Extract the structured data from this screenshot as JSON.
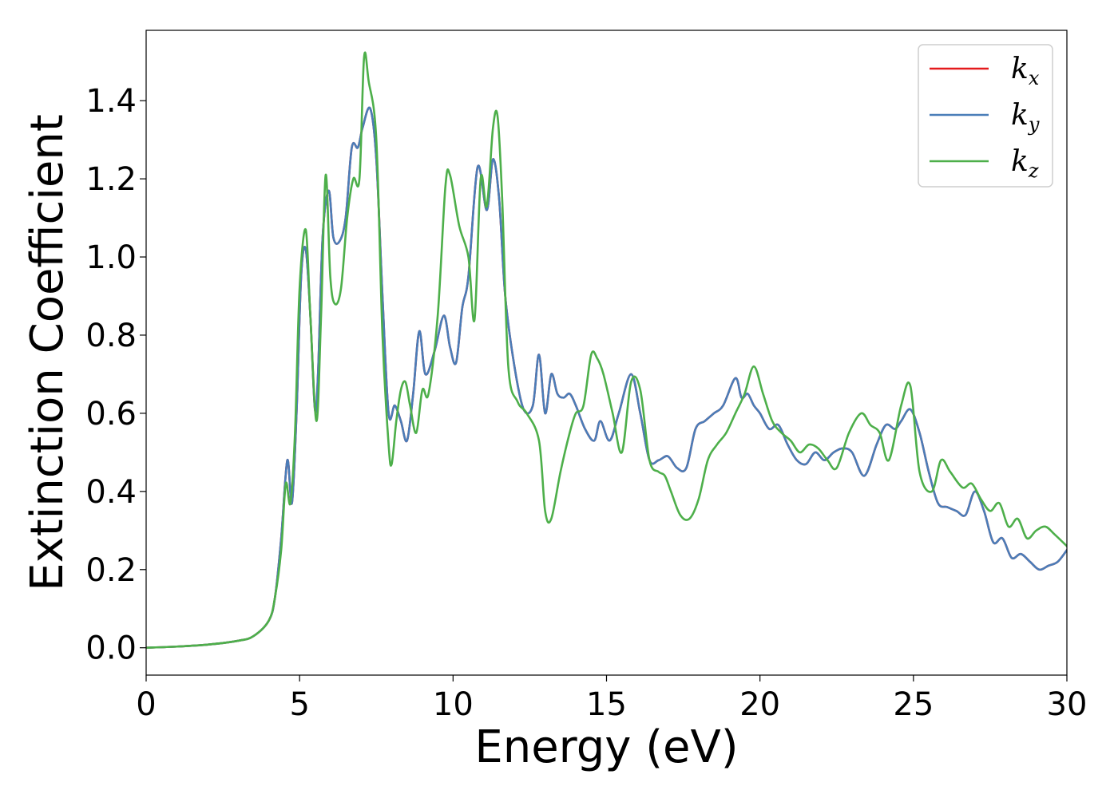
{
  "chart_data": {
    "type": "line",
    "xlabel": "Energy (eV)",
    "ylabel": "Extinction Coefficient",
    "xlim": [
      0,
      30
    ],
    "ylim": [
      -0.07,
      1.58
    ],
    "xticks": [
      0,
      5,
      10,
      15,
      20,
      25,
      30
    ],
    "yticks": [
      0.0,
      0.2,
      0.4,
      0.6,
      0.8,
      1.0,
      1.2,
      1.4
    ],
    "xtick_labels": [
      "0",
      "5",
      "10",
      "15",
      "20",
      "25",
      "30"
    ],
    "ytick_labels": [
      "0.0",
      "0.2",
      "0.4",
      "0.6",
      "0.8",
      "1.0",
      "1.2",
      "1.4"
    ],
    "grid": false,
    "legend_position": "top-right",
    "series": [
      {
        "name": "k_x",
        "label_base": "k",
        "label_sub": "x",
        "color": "#e41a1c",
        "x": [
          0,
          1,
          2,
          3,
          3.5,
          4.0,
          4.2,
          4.4,
          4.6,
          4.75,
          4.9,
          5.05,
          5.2,
          5.35,
          5.5,
          5.6,
          5.75,
          5.95,
          6.1,
          6.3,
          6.5,
          6.7,
          6.9,
          7.05,
          7.3,
          7.5,
          7.7,
          7.9,
          8.1,
          8.3,
          8.5,
          8.7,
          8.9,
          9.1,
          9.4,
          9.7,
          9.9,
          10.1,
          10.3,
          10.5,
          10.8,
          11.1,
          11.3,
          11.5,
          11.7,
          12.0,
          12.3,
          12.6,
          12.8,
          13.0,
          13.2,
          13.4,
          13.6,
          13.8,
          14.0,
          14.3,
          14.6,
          14.8,
          15.1,
          15.4,
          15.8,
          16.1,
          16.4,
          16.7,
          17.0,
          17.3,
          17.6,
          17.9,
          18.2,
          18.5,
          18.8,
          19.2,
          19.4,
          19.6,
          19.8,
          20.0,
          20.3,
          20.6,
          20.9,
          21.2,
          21.5,
          21.8,
          22.1,
          22.4,
          22.7,
          23.0,
          23.4,
          23.8,
          24.1,
          24.4,
          24.6,
          24.9,
          25.2,
          25.5,
          25.8,
          26.1,
          26.4,
          26.7,
          27.0,
          27.3,
          27.6,
          27.9,
          28.2,
          28.5,
          28.8,
          29.1,
          29.4,
          29.7,
          30.0
        ],
        "y": [
          0.0,
          0.003,
          0.008,
          0.018,
          0.03,
          0.07,
          0.13,
          0.28,
          0.48,
          0.37,
          0.6,
          0.95,
          1.02,
          0.85,
          0.61,
          0.7,
          1.05,
          1.17,
          1.05,
          1.04,
          1.1,
          1.28,
          1.28,
          1.33,
          1.38,
          1.25,
          0.9,
          0.6,
          0.62,
          0.58,
          0.53,
          0.65,
          0.81,
          0.7,
          0.76,
          0.85,
          0.77,
          0.73,
          0.87,
          0.95,
          1.23,
          1.12,
          1.25,
          1.15,
          0.9,
          0.72,
          0.61,
          0.62,
          0.75,
          0.6,
          0.7,
          0.65,
          0.64,
          0.65,
          0.62,
          0.56,
          0.53,
          0.58,
          0.53,
          0.6,
          0.7,
          0.6,
          0.48,
          0.48,
          0.49,
          0.46,
          0.46,
          0.56,
          0.58,
          0.6,
          0.62,
          0.69,
          0.64,
          0.65,
          0.62,
          0.6,
          0.56,
          0.57,
          0.52,
          0.48,
          0.47,
          0.5,
          0.48,
          0.5,
          0.51,
          0.5,
          0.44,
          0.52,
          0.57,
          0.56,
          0.58,
          0.61,
          0.55,
          0.45,
          0.37,
          0.36,
          0.35,
          0.34,
          0.4,
          0.35,
          0.27,
          0.28,
          0.23,
          0.24,
          0.22,
          0.2,
          0.21,
          0.22,
          0.25
        ]
      },
      {
        "name": "k_y",
        "label_base": "k",
        "label_sub": "y",
        "color": "#4a7db8",
        "x": [
          0,
          1,
          2,
          3,
          3.5,
          4.0,
          4.2,
          4.4,
          4.6,
          4.75,
          4.9,
          5.05,
          5.2,
          5.35,
          5.5,
          5.6,
          5.75,
          5.95,
          6.1,
          6.3,
          6.5,
          6.7,
          6.9,
          7.05,
          7.3,
          7.5,
          7.7,
          7.9,
          8.1,
          8.3,
          8.5,
          8.7,
          8.9,
          9.1,
          9.4,
          9.7,
          9.9,
          10.1,
          10.3,
          10.5,
          10.8,
          11.1,
          11.3,
          11.5,
          11.7,
          12.0,
          12.3,
          12.6,
          12.8,
          13.0,
          13.2,
          13.4,
          13.6,
          13.8,
          14.0,
          14.3,
          14.6,
          14.8,
          15.1,
          15.4,
          15.8,
          16.1,
          16.4,
          16.7,
          17.0,
          17.3,
          17.6,
          17.9,
          18.2,
          18.5,
          18.8,
          19.2,
          19.4,
          19.6,
          19.8,
          20.0,
          20.3,
          20.6,
          20.9,
          21.2,
          21.5,
          21.8,
          22.1,
          22.4,
          22.7,
          23.0,
          23.4,
          23.8,
          24.1,
          24.4,
          24.6,
          24.9,
          25.2,
          25.5,
          25.8,
          26.1,
          26.4,
          26.7,
          27.0,
          27.3,
          27.6,
          27.9,
          28.2,
          28.5,
          28.8,
          29.1,
          29.4,
          29.7,
          30.0
        ],
        "y": [
          0.0,
          0.003,
          0.008,
          0.018,
          0.03,
          0.07,
          0.13,
          0.28,
          0.48,
          0.37,
          0.6,
          0.95,
          1.02,
          0.85,
          0.61,
          0.7,
          1.05,
          1.17,
          1.05,
          1.04,
          1.1,
          1.28,
          1.28,
          1.33,
          1.38,
          1.25,
          0.9,
          0.6,
          0.62,
          0.58,
          0.53,
          0.65,
          0.81,
          0.7,
          0.76,
          0.85,
          0.77,
          0.73,
          0.87,
          0.95,
          1.23,
          1.12,
          1.25,
          1.15,
          0.9,
          0.72,
          0.61,
          0.62,
          0.75,
          0.6,
          0.7,
          0.65,
          0.64,
          0.65,
          0.62,
          0.56,
          0.53,
          0.58,
          0.53,
          0.6,
          0.7,
          0.6,
          0.48,
          0.48,
          0.49,
          0.46,
          0.46,
          0.56,
          0.58,
          0.6,
          0.62,
          0.69,
          0.64,
          0.65,
          0.62,
          0.6,
          0.56,
          0.57,
          0.52,
          0.48,
          0.47,
          0.5,
          0.48,
          0.5,
          0.51,
          0.5,
          0.44,
          0.52,
          0.57,
          0.56,
          0.58,
          0.61,
          0.55,
          0.45,
          0.37,
          0.36,
          0.35,
          0.34,
          0.4,
          0.35,
          0.27,
          0.28,
          0.23,
          0.24,
          0.22,
          0.2,
          0.21,
          0.22,
          0.25
        ]
      },
      {
        "name": "k_z",
        "label_base": "k",
        "label_sub": "z",
        "color": "#4daf4a",
        "x": [
          0,
          1,
          2,
          3,
          3.5,
          4.0,
          4.2,
          4.4,
          4.55,
          4.7,
          4.85,
          5.0,
          5.2,
          5.35,
          5.55,
          5.7,
          5.85,
          6.0,
          6.15,
          6.35,
          6.55,
          6.75,
          6.95,
          7.1,
          7.25,
          7.5,
          7.7,
          7.9,
          8.0,
          8.15,
          8.3,
          8.45,
          8.6,
          8.8,
          9.0,
          9.2,
          9.5,
          9.75,
          9.9,
          10.2,
          10.5,
          10.7,
          10.9,
          11.1,
          11.3,
          11.45,
          11.6,
          11.8,
          12.1,
          12.4,
          12.8,
          13.0,
          13.2,
          13.5,
          13.8,
          14.0,
          14.25,
          14.5,
          14.7,
          14.9,
          15.2,
          15.5,
          15.8,
          16.1,
          16.4,
          16.7,
          16.9,
          17.1,
          17.4,
          17.7,
          18.0,
          18.3,
          18.6,
          18.9,
          19.2,
          19.5,
          19.8,
          20.1,
          20.4,
          20.7,
          21.0,
          21.3,
          21.6,
          21.9,
          22.2,
          22.5,
          22.9,
          23.3,
          23.6,
          23.9,
          24.2,
          24.6,
          24.9,
          25.2,
          25.6,
          25.9,
          26.2,
          26.6,
          26.9,
          27.2,
          27.5,
          27.8,
          28.1,
          28.4,
          28.7,
          29.0,
          29.3,
          29.6,
          30.0
        ],
        "y": [
          0.0,
          0.003,
          0.008,
          0.018,
          0.03,
          0.07,
          0.13,
          0.25,
          0.42,
          0.37,
          0.55,
          0.92,
          1.07,
          0.85,
          0.58,
          0.85,
          1.21,
          0.95,
          0.88,
          0.92,
          1.1,
          1.2,
          1.2,
          1.51,
          1.45,
          1.3,
          0.8,
          0.52,
          0.47,
          0.58,
          0.66,
          0.68,
          0.62,
          0.55,
          0.66,
          0.65,
          0.85,
          1.18,
          1.21,
          1.08,
          1.0,
          0.84,
          1.2,
          1.13,
          1.33,
          1.36,
          1.15,
          0.72,
          0.63,
          0.6,
          0.53,
          0.35,
          0.33,
          0.45,
          0.55,
          0.6,
          0.62,
          0.75,
          0.74,
          0.7,
          0.6,
          0.5,
          0.68,
          0.66,
          0.48,
          0.45,
          0.44,
          0.4,
          0.34,
          0.33,
          0.38,
          0.48,
          0.52,
          0.55,
          0.6,
          0.65,
          0.72,
          0.65,
          0.58,
          0.55,
          0.53,
          0.5,
          0.52,
          0.51,
          0.48,
          0.46,
          0.55,
          0.6,
          0.57,
          0.55,
          0.48,
          0.62,
          0.67,
          0.45,
          0.4,
          0.48,
          0.45,
          0.41,
          0.42,
          0.38,
          0.35,
          0.37,
          0.31,
          0.33,
          0.28,
          0.3,
          0.31,
          0.29,
          0.26
        ]
      }
    ]
  }
}
